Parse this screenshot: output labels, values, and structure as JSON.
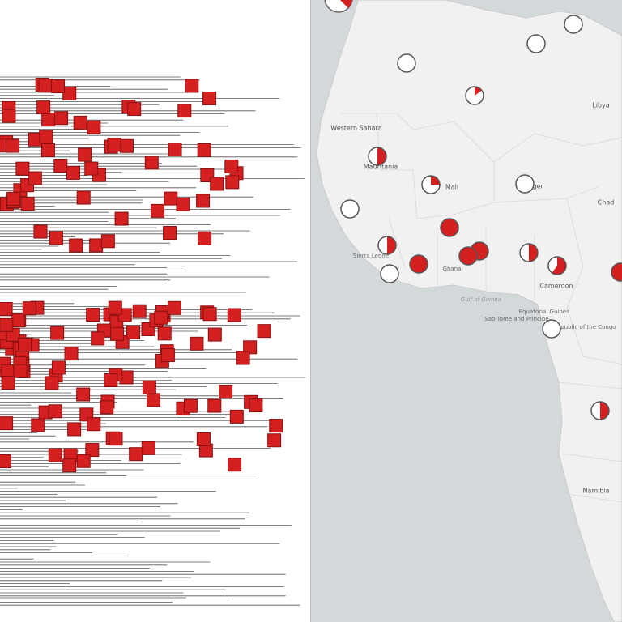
{
  "map": {
    "labels": [
      "Libya",
      "Western Sahara",
      "Mauritania",
      "Mali",
      "Niger",
      "Chad",
      "Cameroon",
      "Ghana",
      "Sierra Leone",
      "Gulf of Guinea",
      "Sao Tome and Principe",
      "Equatorial Guinea",
      "Republic of the Congo",
      "Namibia"
    ],
    "markers": [
      0,
      0,
      0,
      15,
      50,
      25,
      0,
      0,
      100,
      50,
      100,
      100,
      50,
      100,
      60,
      0,
      100,
      0,
      50
    ],
    "marker_color": "#d42020"
  }
}
